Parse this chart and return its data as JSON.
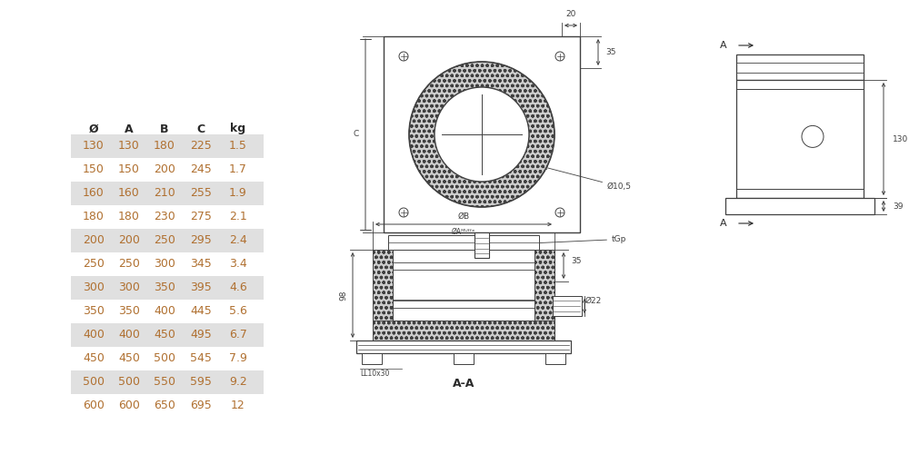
{
  "table_headers": [
    "Ø",
    "A",
    "B",
    "C",
    "kg"
  ],
  "table_rows": [
    [
      "130",
      "130",
      "180",
      "225",
      "1.5"
    ],
    [
      "150",
      "150",
      "200",
      "245",
      "1.7"
    ],
    [
      "160",
      "160",
      "210",
      "255",
      "1.9"
    ],
    [
      "180",
      "180",
      "230",
      "275",
      "2.1"
    ],
    [
      "200",
      "200",
      "250",
      "295",
      "2.4"
    ],
    [
      "250",
      "250",
      "300",
      "345",
      "3.4"
    ],
    [
      "300",
      "300",
      "350",
      "395",
      "4.6"
    ],
    [
      "350",
      "350",
      "400",
      "445",
      "5.6"
    ],
    [
      "400",
      "400",
      "450",
      "495",
      "6.7"
    ],
    [
      "450",
      "450",
      "500",
      "545",
      "7.9"
    ],
    [
      "500",
      "500",
      "550",
      "595",
      "9.2"
    ],
    [
      "600",
      "600",
      "650",
      "695",
      "12"
    ]
  ],
  "shaded_rows": [
    0,
    2,
    4,
    6,
    8,
    10
  ],
  "bg_color": "#ffffff",
  "table_bg": "#e0e0e0",
  "text_color": "#b07030",
  "header_color": "#2a2a2a",
  "line_color": "#404040",
  "dim_color": "#404040"
}
